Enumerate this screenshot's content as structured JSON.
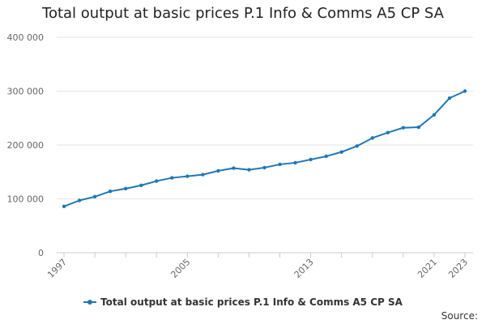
{
  "chart_data": {
    "type": "line",
    "title": "Total output at basic prices P.1 Info & Comms A5 CP SA",
    "xlabel": "",
    "ylabel": "",
    "x": [
      1997,
      1998,
      1999,
      2000,
      2001,
      2002,
      2003,
      2004,
      2005,
      2006,
      2007,
      2008,
      2009,
      2010,
      2011,
      2012,
      2013,
      2014,
      2015,
      2016,
      2017,
      2018,
      2019,
      2020,
      2021,
      2022,
      2023
    ],
    "x_tick_labels": [
      "1997",
      "2005",
      "2013",
      "2021",
      "2023"
    ],
    "x_tick_values": [
      1997,
      2005,
      2013,
      2021,
      2023
    ],
    "xlim": [
      1997,
      2023
    ],
    "ylim": [
      0,
      400000
    ],
    "y_ticks": [
      0,
      100000,
      200000,
      300000,
      400000
    ],
    "y_tick_labels": [
      "0",
      "100 000",
      "200 000",
      "300 000",
      "400 000"
    ],
    "grid": true,
    "legend_position": "bottom",
    "series": [
      {
        "name": "Total output at basic prices P.1 Info & Comms A5 CP SA",
        "color": "#1f77b4",
        "values": [
          86000,
          97000,
          104000,
          114000,
          119000,
          125000,
          133000,
          139000,
          142000,
          145000,
          152000,
          157000,
          154000,
          158000,
          164000,
          167000,
          173000,
          179000,
          187000,
          198000,
          213000,
          223000,
          232000,
          233000,
          256000,
          287000,
          300000
        ]
      }
    ]
  },
  "source_label": "Source:"
}
